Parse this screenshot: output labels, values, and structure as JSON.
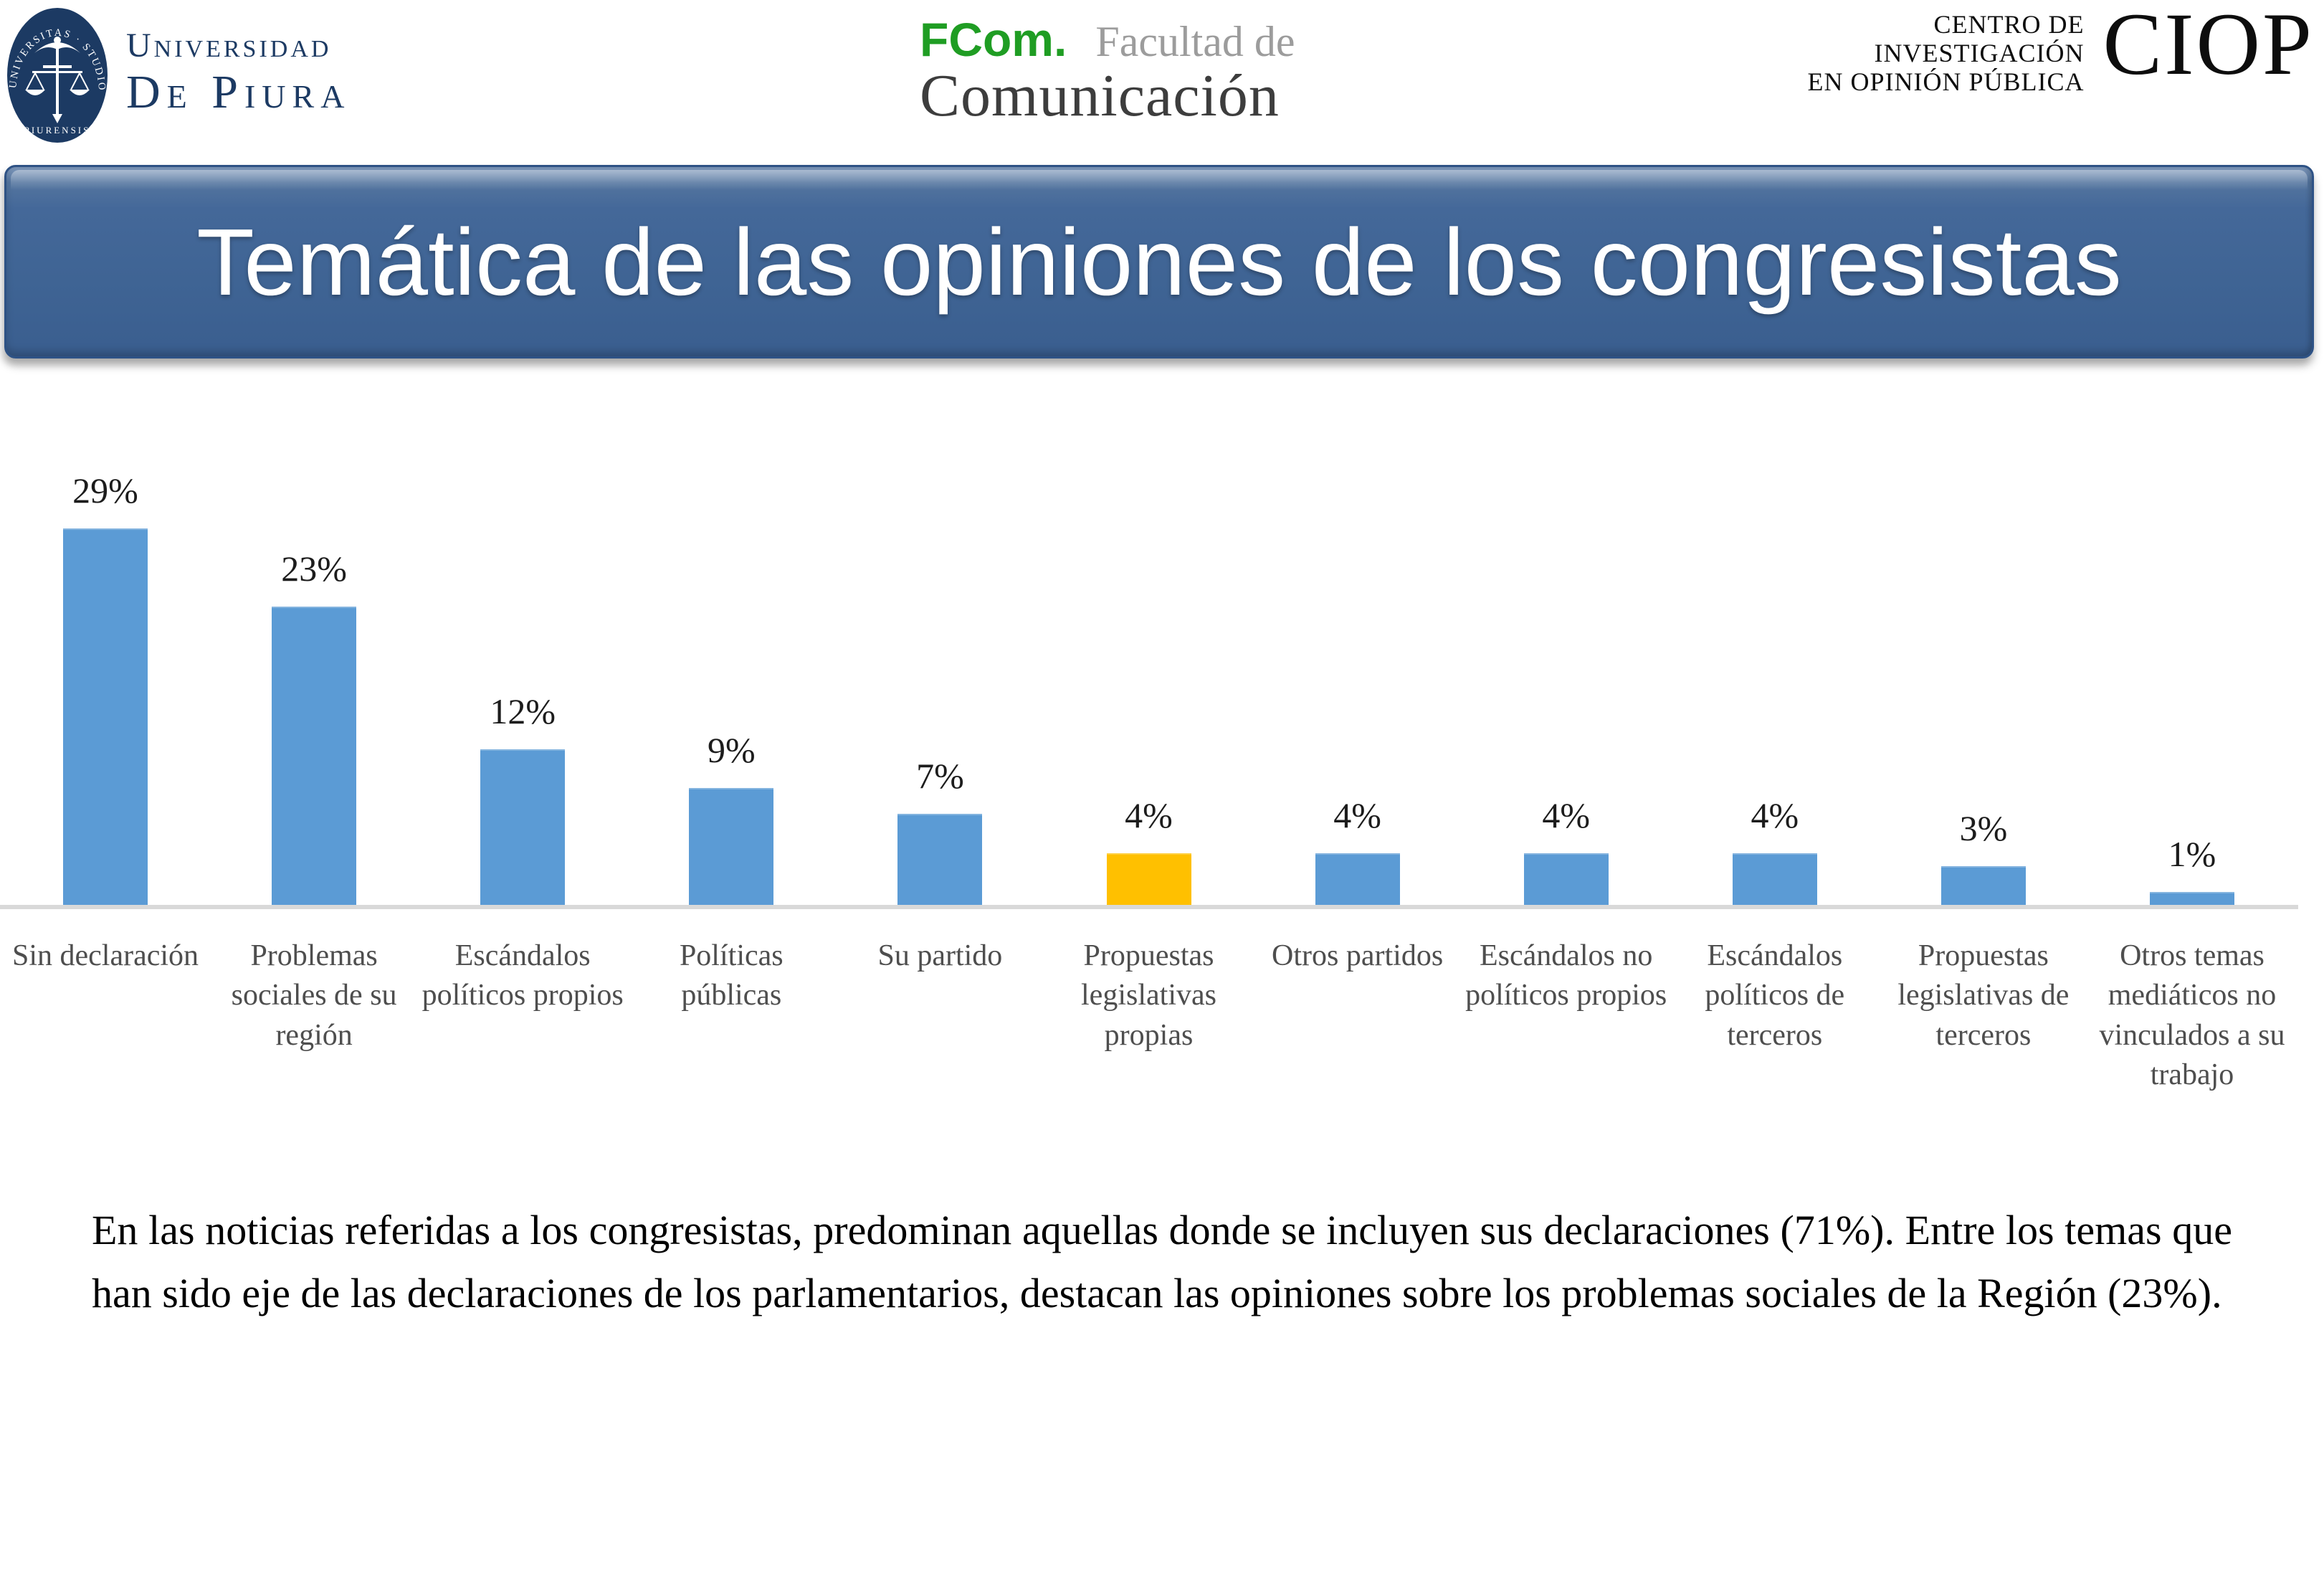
{
  "header": {
    "udep": {
      "wordmark_line1": "Universidad",
      "wordmark_line2": "De Piura",
      "emblem_text_top": "UNIVERSITAS · STUDIORUM",
      "emblem_text_bottom": "PIURENSIS"
    },
    "fcom": {
      "abbr": "FCom.",
      "tagline": "Facultad de",
      "name": "Comunicación"
    },
    "ciop": {
      "name_line1": "CENTRO DE",
      "name_line2": "INVESTIGACIÓN",
      "name_line3": "EN OPINIÓN PÚBLICA",
      "abbr": "CIOP"
    }
  },
  "title_banner": {
    "title": "Temática de las opiniones de los congresistas"
  },
  "chart_data": {
    "type": "bar",
    "title": "",
    "xlabel": "",
    "ylabel": "",
    "categories": [
      "Sin declaración",
      "Problemas sociales de su región",
      "Escándalos políticos propios",
      "Políticas públicas",
      "Su partido",
      "Propuestas legislativas propias",
      "Otros partidos",
      "Escándalos no políticos propios",
      "Escándalos políticos de terceros",
      "Propuestas legislativas de terceros",
      "Otros temas mediáticos no vinculados a su trabajo"
    ],
    "values": [
      29,
      23,
      12,
      9,
      7,
      4,
      4,
      4,
      4,
      3,
      1
    ],
    "value_labels": [
      "29%",
      "23%",
      "12%",
      "9%",
      "7%",
      "4%",
      "4%",
      "4%",
      "4%",
      "3%",
      "1%"
    ],
    "highlight_index": 5,
    "ylim": [
      0,
      30
    ],
    "grid": false,
    "legend": false,
    "colors": {
      "bar": "#5b9bd5",
      "highlight": "#ffc000",
      "axis": "#d9d9d9"
    }
  },
  "summary": {
    "text": "En las noticias referidas a los congresistas, predominan aquellas donde se incluyen sus declaraciones (71%). Entre los temas que han sido eje de las declaraciones de los parlamentarios, destacan las opiniones sobre los problemas sociales de la Región (23%)."
  },
  "colors": {
    "banner_blue": "#3f6494",
    "navy": "#1c3a63",
    "fcom_green": "#1f9d23"
  }
}
